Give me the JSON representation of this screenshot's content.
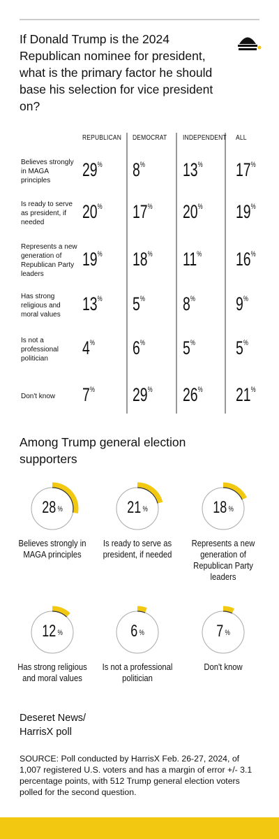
{
  "header": {
    "title": "If Donald Trump is the 2024 Republican nominee for president, what is the primary factor he should base his selection for vice president on?"
  },
  "table": {
    "columns": [
      "REPUBLICAN",
      "DEMOCRAT",
      "INDEPENDENT",
      "ALL"
    ],
    "rows": [
      {
        "label": "Believes strongly in MAGA principles",
        "cells": [
          "29%",
          "8%",
          "13%",
          "17%"
        ]
      },
      {
        "label": "Is ready to serve as president, if needed",
        "cells": [
          "20%",
          "17%",
          "20%",
          "19%"
        ]
      },
      {
        "label": "Represents a new generation of Republican Party leaders",
        "cells": [
          "19%",
          "18%",
          "11%",
          "16%"
        ]
      },
      {
        "label": "Has strong religious and moral values",
        "cells": [
          "13%",
          "5%",
          "8%",
          "9%"
        ]
      },
      {
        "label": "Is not a professional politician",
        "cells": [
          "4%",
          "6%",
          "5%",
          "5%"
        ]
      },
      {
        "label": "Don't know",
        "cells": [
          "7%",
          "29%",
          "26%",
          "21%"
        ]
      }
    ]
  },
  "chart_data": {
    "type": "gauge",
    "title": "Among Trump general election supporters",
    "categories": [
      "Believes strongly in MAGA principles",
      "Is ready to serve as president, if needed",
      "Represents a new generation of Republican Party leaders",
      "Has strong religious and moral values",
      "Is not a professional politician",
      "Don't know"
    ],
    "values": [
      28,
      21,
      18,
      12,
      6,
      7
    ],
    "value_labels": [
      "28%",
      "21%",
      "18%",
      "12%",
      "6%",
      "7%"
    ],
    "color": "#f2c811"
  },
  "footer": {
    "credit": "Deseret News/ HarrisX poll",
    "source": "SOURCE: Poll conducted by HarrisX Feb. 26-27, 2024, of 1,007 registered U.S. voters and has a margin of error +/- 3.1 percentage points, with 512 Trump general election voters polled for the second question."
  }
}
